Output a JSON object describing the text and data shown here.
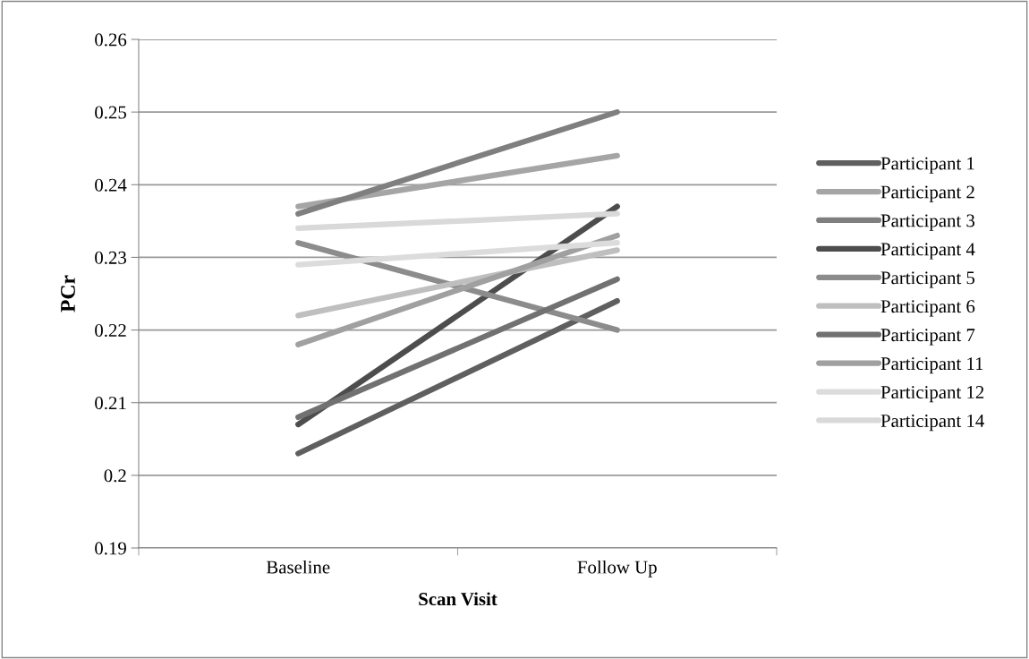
{
  "chart_data": {
    "type": "line",
    "xlabel": "Scan Visit",
    "ylabel": "PCr",
    "categories": [
      "Baseline",
      "Follow Up"
    ],
    "series": [
      {
        "name": "Participant 1",
        "color": "#5f5f5f",
        "values": [
          0.203,
          0.224
        ]
      },
      {
        "name": "Participant 2",
        "color": "#a5a5a5",
        "values": [
          0.237,
          0.244
        ]
      },
      {
        "name": "Participant 3",
        "color": "#7f7f7f",
        "values": [
          0.236,
          0.25
        ]
      },
      {
        "name": "Participant 4",
        "color": "#4d4d4d",
        "values": [
          0.207,
          0.237
        ]
      },
      {
        "name": "Participant 5",
        "color": "#8c8c8c",
        "values": [
          0.232,
          0.22
        ]
      },
      {
        "name": "Participant 6",
        "color": "#bfbfbf",
        "values": [
          0.222,
          0.231
        ]
      },
      {
        "name": "Participant 7",
        "color": "#717171",
        "values": [
          0.208,
          0.227
        ]
      },
      {
        "name": "Participant 11",
        "color": "#a0a0a0",
        "values": [
          0.218,
          0.233
        ]
      },
      {
        "name": "Participant 12",
        "color": "#dcdcdc",
        "values": [
          0.229,
          0.232
        ]
      },
      {
        "name": "Participant 14",
        "color": "#d9d9d9",
        "values": [
          0.234,
          0.236
        ]
      }
    ],
    "ylim": [
      0.19,
      0.26
    ],
    "yticks": [
      0.19,
      0.2,
      0.21,
      0.22,
      0.23,
      0.24,
      0.25,
      0.26
    ],
    "grid": "y",
    "legend": "right",
    "marker": "none",
    "line_style": "solid"
  }
}
